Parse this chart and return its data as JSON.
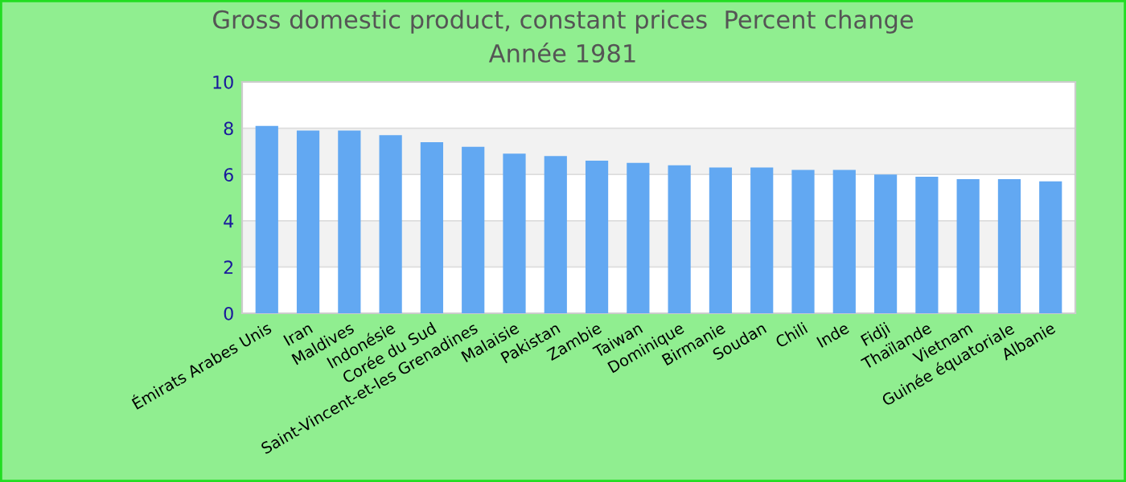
{
  "chart_data": {
    "type": "bar",
    "title": "Gross domestic product, constant prices  Percent change",
    "subtitle": "Année 1981",
    "categories": [
      "Émirats Arabes Unis",
      "Iran",
      "Maldives",
      "Indonésie",
      "Corée du Sud",
      "Saint-Vincent-et-les Grenadines",
      "Malaisie",
      "Pakistan",
      "Zambie",
      "Taiwan",
      "Dominique",
      "Birmanie",
      "Soudan",
      "Chili",
      "Inde",
      "Fidji",
      "Thaïlande",
      "Vietnam",
      "Guinée équatoriale",
      "Albanie"
    ],
    "values": [
      8.1,
      7.9,
      7.9,
      7.7,
      7.4,
      7.2,
      6.9,
      6.8,
      6.6,
      6.5,
      6.4,
      6.3,
      6.3,
      6.2,
      6.2,
      6.0,
      5.9,
      5.8,
      5.8,
      5.7
    ],
    "color": "#62a8f2",
    "ylim": [
      0,
      10
    ],
    "yticks": [
      0,
      2,
      4,
      6,
      8,
      10
    ],
    "grid": "y",
    "legend": false
  }
}
